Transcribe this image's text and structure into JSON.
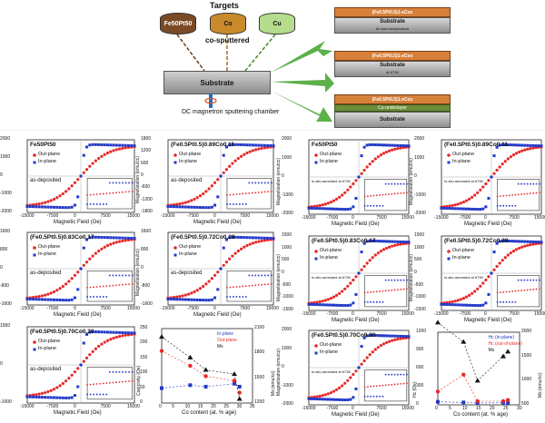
{
  "schematic": {
    "targets_title": "Targets",
    "targets": [
      "Fe50Pt50",
      "Co",
      "Cu"
    ],
    "cosputtered": "co-sputtered",
    "substrate": "Substrate",
    "chamber": "DC magnetron sputtering chamber",
    "stacks": [
      {
        "film": "(Fe0.5Pt0.5)1-xCox",
        "substrate": "Substrate",
        "note": "At room temperature"
      },
      {
        "film": "(Fe0.5Pt0.5)1-xCox",
        "substrate": "Substrate",
        "note": "At 673K"
      },
      {
        "film": "(Fe0.5Pt0.5)1-xCox",
        "under": "Cu-underlayer",
        "substrate": "Substrate",
        "note": ""
      }
    ]
  },
  "common": {
    "xlabel": "Magnetic Field (Oe)",
    "ylabel": "Magnetization (emu/cc)",
    "legend_out": "Out-plane",
    "legend_in": "In-plane",
    "as_deposited": "as-deposited",
    "insitu": "in-situ annealed at 673K",
    "xticks": [
      "-15000",
      "-7500",
      "0",
      "7500",
      "15000"
    ]
  },
  "panels_left": [
    {
      "title": "Fe50Pt50",
      "yticks": [
        "2000",
        "1000",
        "0",
        "-1000",
        "-2000"
      ]
    },
    {
      "title": "(Fe0.5Pt0.5)0.89Co0.11",
      "yticks": [
        "1800",
        "1200",
        "600",
        "0",
        "-600",
        "-1200",
        "-1800"
      ]
    },
    {
      "title": "(Fe0.5Pt0.5)0.83Co0.17",
      "yticks": [
        "1600",
        "800",
        "0",
        "-800",
        "-1600"
      ]
    },
    {
      "title": "(Fe0.5Pt0.5)0.72Co0.28",
      "yticks": [
        "1600",
        "800",
        "0",
        "-800",
        "-1600"
      ]
    },
    {
      "title": "(Fe0.5Pt0.5)0.70Co0.30",
      "yticks": [
        "1000",
        "0",
        "-1000"
      ]
    }
  ],
  "panels_right": [
    {
      "title": "Fe50Pt50",
      "yticks": [
        "2000",
        "1000",
        "0",
        "-1000",
        "-2000"
      ]
    },
    {
      "title": "(Fe0.5Pt0.5)0.89Co0.11",
      "yticks": [
        "2000",
        "1000",
        "0",
        "-1000",
        "-2000"
      ]
    },
    {
      "title": "(Fe0.5Pt0.5)0.83Co0.17",
      "yticks": [
        "1500",
        "1000",
        "500",
        "0",
        "-500",
        "-1000",
        "-1500"
      ]
    },
    {
      "title": "(Fe0.5Pt0.5)0.72Co0.28",
      "yticks": [
        "1500",
        "1000",
        "500",
        "0",
        "-500",
        "-1000",
        "-1500"
      ]
    },
    {
      "title": "(Fe0.5Pt0.5)0.70Co0.30",
      "yticks": [
        "2000",
        "1000",
        "0",
        "-1000",
        "-2000"
      ]
    }
  ],
  "chart_data": [
    {
      "type": "scatter",
      "title": "",
      "xlabel": "Co content (at. % age)",
      "ylabel": "Coercivity (Oe)",
      "ylabel_right": "Ms (emu/cc)",
      "x": [
        0,
        11,
        17,
        28,
        30
      ],
      "xticks": [
        "0",
        "5",
        "10",
        "15",
        "20",
        "25",
        "30",
        "35"
      ],
      "yticks": [
        "250",
        "200",
        "150",
        "100",
        "50",
        "0"
      ],
      "yticks_right": [
        "2100",
        "1800",
        "1500",
        "1200"
      ],
      "series": [
        {
          "name": "In-plane",
          "values": [
            50,
            60,
            55,
            65,
            55
          ]
        },
        {
          "name": "Out-plane",
          "values": [
            175,
            125,
            90,
            75,
            35
          ]
        },
        {
          "name": "Ms",
          "values": [
            2000,
            1750,
            1600,
            1550,
            1250
          ]
        }
      ]
    },
    {
      "type": "scatter",
      "title": "",
      "xlabel": "Co content (at. % age)",
      "ylabel": "Hc (Oe)",
      "ylabel_right": "Ms (emu/cc)",
      "x": [
        0,
        11,
        17,
        28,
        30
      ],
      "xticks": [
        "0",
        "5",
        "10",
        "15",
        "20",
        "25",
        "30"
      ],
      "yticks": [
        "1200",
        "900",
        "600",
        "300",
        "0"
      ],
      "yticks_right": [
        "2000",
        "1500",
        "1000",
        "500"
      ],
      "series": [
        {
          "name": "Hc (in-plane)",
          "values": [
            50,
            40,
            30,
            35,
            30
          ]
        },
        {
          "name": "Hc (out-of-plane)",
          "values": [
            220,
            500,
            60,
            60,
            80
          ]
        },
        {
          "name": "Ms",
          "values": [
            2200,
            1800,
            1000,
            1500,
            1600
          ]
        }
      ]
    }
  ]
}
